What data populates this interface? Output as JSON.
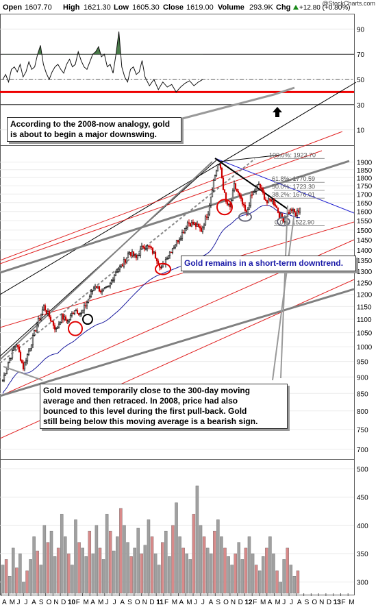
{
  "header": {
    "open_label": "Open",
    "open": "1607.70",
    "high_label": "High",
    "high": "1621.30",
    "low_label": "Low",
    "low": "1605.30",
    "close_label": "Close",
    "close": "1619.00",
    "volume_label": "Volume",
    "volume": "293.9K",
    "chg_label": "Chg",
    "chg": "+12.80 (+0.80%)",
    "arrow_icon": "up-arrow-icon"
  },
  "watermark": "@StockCharts.com",
  "colors": {
    "up_candle": "#000000",
    "down_candle": "#cc0000",
    "ma_line": "#1a1a9e",
    "red_trend": "#e02020",
    "gray_trend": "#808080",
    "fib_line": "#909090",
    "rsi_fill": "#4a7c4a",
    "vol_up": "#a0a0a0",
    "vol_down": "#d88a8a"
  },
  "annotations": {
    "note1": [
      "According to the 2008-now analogy, gold",
      "is about to begin a major downswing."
    ],
    "note2": "Gold remains in a short-term downtrend.",
    "note3": [
      "Gold moved temporarily close to the 300-day moving",
      "average and then retraced. In 2008, price had also",
      "bounced to this level during the first pull-back. Gold",
      "still being below this moving average is a bearish sign."
    ]
  },
  "chart_data": [
    {
      "type": "line",
      "panel": "rsi",
      "yticks": [
        10,
        30,
        50,
        70,
        90
      ],
      "ylim": [
        0,
        100
      ],
      "reference_lines": [
        30,
        50,
        70,
        40
      ],
      "x": [
        0,
        4,
        8,
        12,
        16,
        20,
        24,
        28,
        32,
        36,
        40,
        44,
        48,
        52,
        56,
        60,
        64,
        68,
        72,
        76,
        80,
        84,
        88,
        92,
        96,
        100,
        104,
        108,
        112,
        116,
        120,
        124,
        128,
        132,
        136,
        140,
        144,
        148,
        152,
        156,
        160,
        164,
        168,
        172,
        176,
        180,
        184,
        188,
        192,
        196
      ],
      "values": [
        50,
        54,
        48,
        58,
        60,
        56,
        62,
        52,
        56,
        64,
        58,
        60,
        70,
        77,
        62,
        55,
        50,
        56,
        60,
        62,
        58,
        55,
        62,
        66,
        60,
        62,
        72,
        65,
        60,
        58,
        64,
        70,
        72,
        76,
        68,
        70,
        60,
        62,
        55,
        70,
        88,
        60,
        52,
        48,
        58,
        60,
        54,
        56,
        65,
        52
      ],
      "tail_values": [
        45,
        50,
        42,
        48,
        44,
        46,
        40,
        44,
        47,
        49,
        45,
        48,
        50
      ]
    },
    {
      "type": "candlestick",
      "panel": "price",
      "yticks": [
        700,
        750,
        800,
        850,
        900,
        950,
        1000,
        1050,
        1100,
        1150,
        1200,
        1250,
        1300,
        1350,
        1400,
        1450,
        1500,
        1550,
        1600,
        1650,
        1700,
        1750,
        1800,
        1850,
        1900
      ],
      "ylim": [
        680,
        1930
      ],
      "scale": "log",
      "anchors": [
        [
          0,
          890
        ],
        [
          10,
          960
        ],
        [
          20,
          1010
        ],
        [
          30,
          930
        ],
        [
          40,
          1000
        ],
        [
          50,
          1080
        ],
        [
          60,
          1150
        ],
        [
          70,
          1100
        ],
        [
          78,
          1060
        ],
        [
          86,
          1110
        ],
        [
          95,
          1090
        ],
        [
          105,
          1140
        ],
        [
          115,
          1120
        ],
        [
          125,
          1180
        ],
        [
          135,
          1240
        ],
        [
          145,
          1210
        ],
        [
          155,
          1230
        ],
        [
          165,
          1300
        ],
        [
          175,
          1330
        ],
        [
          185,
          1390
        ],
        [
          195,
          1360
        ],
        [
          205,
          1420
        ],
        [
          215,
          1410
        ],
        [
          225,
          1360
        ],
        [
          232,
          1310
        ],
        [
          240,
          1370
        ],
        [
          250,
          1420
        ],
        [
          260,
          1470
        ],
        [
          270,
          1540
        ],
        [
          280,
          1530
        ],
        [
          290,
          1500
        ],
        [
          300,
          1600
        ],
        [
          308,
          1780
        ],
        [
          314,
          1880
        ],
        [
          318,
          1860
        ],
        [
          322,
          1740
        ],
        [
          326,
          1650
        ],
        [
          332,
          1620
        ],
        [
          338,
          1750
        ],
        [
          344,
          1700
        ],
        [
          350,
          1640
        ],
        [
          356,
          1580
        ],
        [
          362,
          1680
        ],
        [
          368,
          1720
        ],
        [
          374,
          1760
        ],
        [
          380,
          1700
        ],
        [
          386,
          1650
        ],
        [
          392,
          1670
        ],
        [
          398,
          1640
        ],
        [
          404,
          1580
        ],
        [
          410,
          1560
        ],
        [
          416,
          1590
        ],
        [
          422,
          1610
        ],
        [
          428,
          1580
        ],
        [
          434,
          1619
        ]
      ],
      "fib_levels": [
        {
          "label": "100.0%: 1923.70",
          "value": 1923.7
        },
        {
          "label": "61.8%: 1770.59",
          "value": 1770.59
        },
        {
          "label": "50.0%: 1723.30",
          "value": 1723.3
        },
        {
          "label": "38.2%: 1676.01",
          "value": 1676.01
        },
        {
          "label": "0.0%: 1522.90",
          "value": 1522.9
        }
      ]
    },
    {
      "type": "bar",
      "panel": "volume",
      "yticks": [
        300,
        350,
        400,
        450,
        500
      ],
      "ylim": [
        280,
        510
      ],
      "values": [
        330,
        340,
        310,
        360,
        325,
        350,
        300,
        320,
        340,
        380,
        355,
        330,
        400,
        370,
        390,
        345,
        360,
        420,
        380,
        350,
        330,
        410,
        370,
        360,
        345,
        390,
        350,
        400,
        360,
        340,
        420,
        390,
        355,
        380,
        430,
        400,
        370,
        345,
        360,
        395,
        350,
        365,
        410,
        380,
        350,
        330,
        370,
        390,
        345,
        400,
        440,
        380,
        360,
        350,
        340,
        420,
        470,
        400,
        380,
        360,
        350,
        390,
        410,
        380,
        360,
        345,
        330,
        350,
        370,
        340,
        360,
        380,
        350,
        330,
        320,
        345,
        360,
        380,
        350,
        320,
        300,
        340,
        360,
        330,
        310,
        320
      ]
    }
  ],
  "x_axis_labels": [
    "A",
    "M",
    "J",
    "J",
    "A",
    "S",
    "O",
    "N",
    "D",
    "10",
    "F",
    "M",
    "A",
    "M",
    "J",
    "J",
    "A",
    "S",
    "O",
    "N",
    "D",
    "11",
    "F",
    "M",
    "A",
    "M",
    "J",
    "J",
    "A",
    "S",
    "O",
    "N",
    "D",
    "12",
    "F",
    "M",
    "A",
    "M",
    "J",
    "J",
    "A",
    "S",
    "O",
    "N",
    "D",
    "13",
    "F",
    "M"
  ]
}
